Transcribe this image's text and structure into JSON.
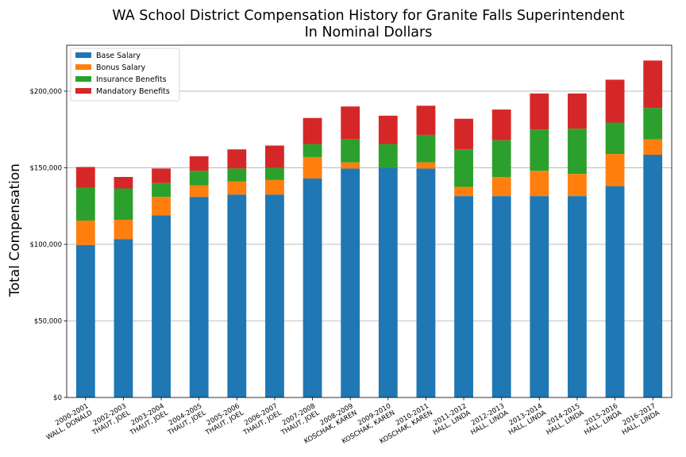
{
  "chart_data": {
    "type": "bar",
    "stacked": true,
    "title": "WA School District Compensation History for Granite Falls Superintendent",
    "subtitle": "In Nominal Dollars",
    "xlabel": "",
    "ylabel": "Total Compensation",
    "ylim": [
      0,
      230000
    ],
    "yticks": [
      0,
      50000,
      100000,
      150000,
      200000
    ],
    "ytick_labels": [
      "$0",
      "$50,000",
      "$100,000",
      "$150,000",
      "$200,000"
    ],
    "grid": "y",
    "legend_position": "top-left",
    "categories": [
      [
        "2000-2001",
        "WALL, DONALD"
      ],
      [
        "2002-2003",
        "THAUT, JOEL"
      ],
      [
        "2003-2004",
        "THAUT, JOEL"
      ],
      [
        "2004-2005",
        "THAUT, JOEL"
      ],
      [
        "2005-2006",
        "THAUT, JOEL"
      ],
      [
        "2006-2007",
        "THAUT, JOEL"
      ],
      [
        "2007-2008",
        "THAUT, JOEL"
      ],
      [
        "2008-2009",
        "KOSCHAK, KAREN"
      ],
      [
        "2009-2010",
        "KOSCHAK, KAREN"
      ],
      [
        "2010-2011",
        "KOSCHAK, KAREN"
      ],
      [
        "2011-2012",
        "HALL, LINDA"
      ],
      [
        "2012-2013",
        "HALL, LINDA"
      ],
      [
        "2013-2014",
        "HALL, LINDA"
      ],
      [
        "2014-2015",
        "HALL, LINDA"
      ],
      [
        "2015-2016",
        "HALL, LINDA"
      ],
      [
        "2016-2017",
        "HALL, LINDA"
      ]
    ],
    "series": [
      {
        "name": "Base Salary",
        "color": "#1f77b4",
        "values": [
          99500,
          103500,
          119000,
          131000,
          132500,
          132500,
          143000,
          149500,
          150000,
          149500,
          131500,
          131500,
          131500,
          131500,
          138000,
          158500
        ]
      },
      {
        "name": "Bonus Salary",
        "color": "#ff7f0e",
        "values": [
          16000,
          12500,
          12000,
          7500,
          8500,
          9500,
          14000,
          4000,
          0,
          4000,
          6000,
          12500,
          16500,
          14500,
          21000,
          10000
        ]
      },
      {
        "name": "Insurance Benefits",
        "color": "#2ca02c",
        "values": [
          21500,
          20500,
          9000,
          9500,
          8500,
          8000,
          8500,
          15000,
          15500,
          18000,
          24500,
          24000,
          27000,
          29500,
          20500,
          20500
        ]
      },
      {
        "name": "Mandatory Benefits",
        "color": "#d62728",
        "values": [
          13500,
          7500,
          9500,
          9500,
          12500,
          14500,
          17000,
          21500,
          18500,
          19000,
          20000,
          20000,
          23500,
          23000,
          28000,
          31000
        ]
      }
    ]
  }
}
